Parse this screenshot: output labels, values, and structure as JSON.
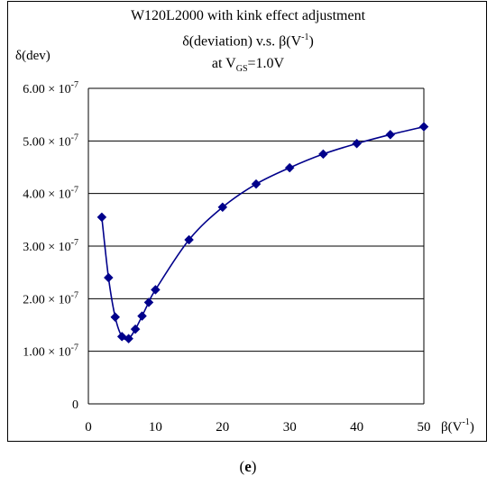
{
  "chart_data": {
    "type": "line",
    "title_line1": "W120L2000 with kink effect adjustment",
    "title_line2_pre": "δ(deviation) v.s. β(V",
    "title_line2_sup": "-1",
    "title_line2_post": ")",
    "title_line3_pre": "at V",
    "title_line3_sub": "GS",
    "title_line3_post": "=1.0V",
    "ylabel": "δ(dev)",
    "xlabel_pre": "β(V",
    "xlabel_sup": "-1",
    "xlabel_post": ")",
    "xlim": [
      0,
      50
    ],
    "ylim": [
      0,
      6e-07
    ],
    "x_ticks": [
      "0",
      "10",
      "20",
      "30",
      "40",
      "50"
    ],
    "y_ticks": [
      {
        "mant": "0",
        "exp": ""
      },
      {
        "mant": "1.00 × 10",
        "exp": "-7"
      },
      {
        "mant": "2.00 × 10",
        "exp": "-7"
      },
      {
        "mant": "3.00 × 10",
        "exp": "-7"
      },
      {
        "mant": "4.00 × 10",
        "exp": "-7"
      },
      {
        "mant": "5.00 × 10",
        "exp": "-7"
      },
      {
        "mant": "6.00 × 10",
        "exp": "-7"
      }
    ],
    "grid": "horizontal",
    "series": [
      {
        "color": "#00008B",
        "marker": "diamond",
        "x": [
          2,
          3,
          4,
          5,
          6,
          7,
          8,
          9,
          10,
          15,
          20,
          25,
          30,
          35,
          40,
          45,
          50
        ],
        "y": [
          3.55e-07,
          2.4e-07,
          1.65e-07,
          1.28e-07,
          1.24e-07,
          1.42e-07,
          1.67e-07,
          1.93e-07,
          2.17e-07,
          3.12e-07,
          3.74e-07,
          4.18e-07,
          4.49e-07,
          4.75e-07,
          4.95e-07,
          5.12e-07,
          5.27e-07
        ]
      }
    ]
  },
  "panel_label": "e"
}
